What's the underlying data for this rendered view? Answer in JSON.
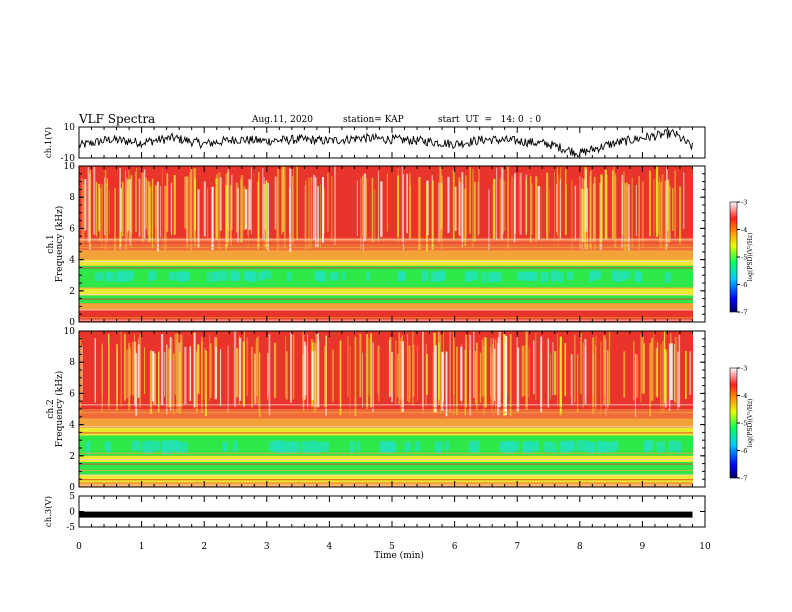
{
  "header": {
    "title": "VLF Spectra",
    "date": "Aug.11, 2020",
    "station": "station= KAP",
    "start_ut": "start  UT  =   14: 0  : 0"
  },
  "chart_data": [
    {
      "type": "line",
      "panel": "ch1-waveform",
      "ylabel": "ch.1(V)",
      "ylim": [
        -10,
        10
      ],
      "yticks": [
        "10",
        "-10"
      ],
      "xlim": [
        0,
        10
      ],
      "series": [
        {
          "x": [
            0,
            0.5,
            1,
            1.5,
            2,
            2.5,
            3,
            3.5,
            4,
            4.5,
            5,
            5.5,
            6,
            6.5,
            7,
            7.5,
            8,
            8.5,
            9,
            9.5,
            9.8
          ],
          "values": [
            -2,
            2,
            0,
            3,
            -1,
            2,
            1,
            2,
            1,
            3,
            2,
            1,
            -1,
            2,
            1,
            -1,
            -7,
            -1,
            3,
            6,
            -3
          ]
        }
      ]
    },
    {
      "type": "heatmap",
      "panel": "ch1-spectrogram",
      "ylabel": "ch.1 Frequency  (kHz)",
      "ylim": [
        0,
        10
      ],
      "yticks": [
        "0",
        "2",
        "4",
        "6",
        "8",
        "10"
      ],
      "xlim": [
        0,
        9.8
      ],
      "colorbar": {
        "label": "log(PSD)(V²/Hz)",
        "range": [
          -7,
          -3
        ],
        "ticks": [
          "-3",
          "-4",
          "-5",
          "-6",
          "-7"
        ]
      }
    },
    {
      "type": "heatmap",
      "panel": "ch2-spectrogram",
      "ylabel": "ch.2 Frequency  (kHz)",
      "ylim": [
        0,
        10
      ],
      "yticks": [
        "0",
        "2",
        "4",
        "6",
        "8",
        "10"
      ],
      "xlim": [
        0,
        9.8
      ],
      "colorbar": {
        "label": "log(PSD)(V²/Hz)",
        "range": [
          -7,
          -3
        ],
        "ticks": [
          "-3",
          "-4",
          "-5",
          "-6",
          "-7"
        ]
      }
    },
    {
      "type": "line",
      "panel": "ch3-waveform",
      "ylabel": "ch.3(V)",
      "ylim": [
        -5,
        5
      ],
      "yticks": [
        "5",
        "0",
        "-5"
      ],
      "xlim": [
        0,
        10
      ],
      "series": [
        {
          "x": [
            0,
            9.8
          ],
          "values": [
            -1,
            -1
          ]
        }
      ]
    }
  ],
  "xaxis": {
    "label": "Time  (min)",
    "ticks": [
      "0",
      "1",
      "2",
      "3",
      "4",
      "5",
      "6",
      "7",
      "8",
      "9",
      "10"
    ],
    "range": [
      0,
      10
    ]
  },
  "colors": {
    "red": "#e8342a",
    "orange": "#f3a23a",
    "yellow": "#eaea30",
    "green": "#2ee84a",
    "cyan": "#22e2b8",
    "white": "#f7f2f2",
    "line": "#000000"
  }
}
